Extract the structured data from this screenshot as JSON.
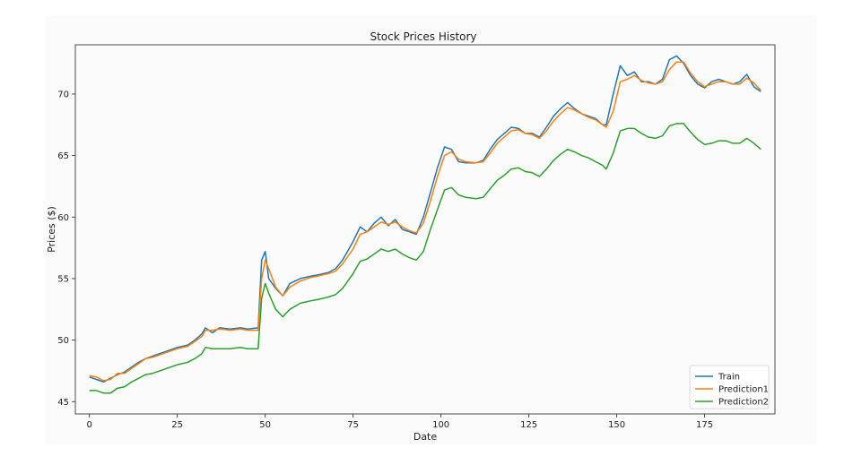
{
  "chart_data": {
    "type": "line",
    "title": "Stock Prices History",
    "xlabel": "Date",
    "ylabel": "Prices ($)",
    "xlim": [
      -4,
      195
    ],
    "ylim": [
      44,
      74
    ],
    "xticks": [
      0,
      25,
      50,
      75,
      100,
      125,
      150,
      175
    ],
    "yticks": [
      45,
      50,
      55,
      60,
      65,
      70
    ],
    "grid": false,
    "legend_position": "bottom-right",
    "series": [
      {
        "name": "Train",
        "color": "#1f77b4",
        "points": [
          [
            0,
            47.0
          ],
          [
            2,
            46.8
          ],
          [
            4,
            46.6
          ],
          [
            6,
            46.9
          ],
          [
            8,
            47.2
          ],
          [
            10,
            47.4
          ],
          [
            12,
            47.8
          ],
          [
            14,
            48.2
          ],
          [
            16,
            48.5
          ],
          [
            18,
            48.7
          ],
          [
            20,
            48.9
          ],
          [
            22,
            49.1
          ],
          [
            25,
            49.4
          ],
          [
            28,
            49.6
          ],
          [
            30,
            50.0
          ],
          [
            32,
            50.5
          ],
          [
            33,
            51.0
          ],
          [
            35,
            50.6
          ],
          [
            37,
            51.0
          ],
          [
            40,
            50.9
          ],
          [
            43,
            51.0
          ],
          [
            45,
            50.9
          ],
          [
            48,
            51.0
          ],
          [
            49,
            56.5
          ],
          [
            50,
            57.2
          ],
          [
            51,
            55.0
          ],
          [
            53,
            54.2
          ],
          [
            55,
            53.6
          ],
          [
            57,
            54.6
          ],
          [
            60,
            55.0
          ],
          [
            63,
            55.2
          ],
          [
            65,
            55.3
          ],
          [
            68,
            55.5
          ],
          [
            70,
            55.8
          ],
          [
            72,
            56.5
          ],
          [
            75,
            58.0
          ],
          [
            77,
            59.2
          ],
          [
            79,
            58.8
          ],
          [
            81,
            59.5
          ],
          [
            83,
            60.0
          ],
          [
            85,
            59.3
          ],
          [
            87,
            59.8
          ],
          [
            89,
            59.0
          ],
          [
            91,
            58.8
          ],
          [
            93,
            58.6
          ],
          [
            95,
            60.0
          ],
          [
            97,
            62.0
          ],
          [
            99,
            64.0
          ],
          [
            101,
            65.7
          ],
          [
            103,
            65.5
          ],
          [
            105,
            64.5
          ],
          [
            107,
            64.4
          ],
          [
            110,
            64.4
          ],
          [
            112,
            64.6
          ],
          [
            114,
            65.5
          ],
          [
            116,
            66.3
          ],
          [
            118,
            66.8
          ],
          [
            120,
            67.3
          ],
          [
            122,
            67.2
          ],
          [
            124,
            66.8
          ],
          [
            126,
            66.8
          ],
          [
            128,
            66.5
          ],
          [
            130,
            67.3
          ],
          [
            132,
            68.2
          ],
          [
            134,
            68.8
          ],
          [
            136,
            69.3
          ],
          [
            138,
            68.8
          ],
          [
            140,
            68.4
          ],
          [
            142,
            68.2
          ],
          [
            144,
            68.0
          ],
          [
            146,
            67.5
          ],
          [
            147,
            67.5
          ],
          [
            149,
            70.0
          ],
          [
            151,
            72.3
          ],
          [
            153,
            71.5
          ],
          [
            155,
            71.8
          ],
          [
            157,
            71.0
          ],
          [
            159,
            71.0
          ],
          [
            161,
            70.8
          ],
          [
            163,
            71.2
          ],
          [
            165,
            72.8
          ],
          [
            167,
            73.1
          ],
          [
            169,
            72.5
          ],
          [
            171,
            71.5
          ],
          [
            173,
            70.8
          ],
          [
            175,
            70.5
          ],
          [
            177,
            71.0
          ],
          [
            179,
            71.2
          ],
          [
            181,
            71.0
          ],
          [
            183,
            70.8
          ],
          [
            185,
            71.0
          ],
          [
            187,
            71.6
          ],
          [
            189,
            70.6
          ],
          [
            191,
            70.2
          ]
        ]
      },
      {
        "name": "Prediction1",
        "color": "#ff7f0e",
        "points": [
          [
            0,
            47.1
          ],
          [
            2,
            47.0
          ],
          [
            4,
            46.7
          ],
          [
            6,
            46.8
          ],
          [
            8,
            47.3
          ],
          [
            10,
            47.3
          ],
          [
            12,
            47.7
          ],
          [
            14,
            48.1
          ],
          [
            16,
            48.5
          ],
          [
            18,
            48.6
          ],
          [
            20,
            48.8
          ],
          [
            22,
            49.0
          ],
          [
            25,
            49.3
          ],
          [
            28,
            49.5
          ],
          [
            30,
            49.9
          ],
          [
            32,
            50.3
          ],
          [
            33,
            50.8
          ],
          [
            35,
            50.8
          ],
          [
            37,
            50.9
          ],
          [
            40,
            50.8
          ],
          [
            43,
            50.9
          ],
          [
            45,
            50.8
          ],
          [
            48,
            50.8
          ],
          [
            49,
            55.0
          ],
          [
            50,
            56.5
          ],
          [
            51,
            55.8
          ],
          [
            53,
            54.3
          ],
          [
            55,
            53.6
          ],
          [
            57,
            54.3
          ],
          [
            60,
            54.8
          ],
          [
            63,
            55.1
          ],
          [
            65,
            55.2
          ],
          [
            68,
            55.4
          ],
          [
            70,
            55.6
          ],
          [
            72,
            56.2
          ],
          [
            75,
            57.4
          ],
          [
            77,
            58.6
          ],
          [
            79,
            58.8
          ],
          [
            81,
            59.2
          ],
          [
            83,
            59.6
          ],
          [
            85,
            59.4
          ],
          [
            87,
            59.6
          ],
          [
            89,
            59.2
          ],
          [
            91,
            58.9
          ],
          [
            93,
            58.7
          ],
          [
            95,
            59.5
          ],
          [
            97,
            61.3
          ],
          [
            99,
            63.3
          ],
          [
            101,
            65.0
          ],
          [
            103,
            65.3
          ],
          [
            105,
            64.7
          ],
          [
            107,
            64.5
          ],
          [
            110,
            64.4
          ],
          [
            112,
            64.5
          ],
          [
            114,
            65.2
          ],
          [
            116,
            66.0
          ],
          [
            118,
            66.5
          ],
          [
            120,
            67.0
          ],
          [
            122,
            67.1
          ],
          [
            124,
            66.8
          ],
          [
            126,
            66.7
          ],
          [
            128,
            66.4
          ],
          [
            130,
            67.0
          ],
          [
            132,
            67.8
          ],
          [
            134,
            68.4
          ],
          [
            136,
            68.9
          ],
          [
            138,
            68.7
          ],
          [
            140,
            68.4
          ],
          [
            142,
            68.1
          ],
          [
            144,
            67.9
          ],
          [
            146,
            67.5
          ],
          [
            147,
            67.3
          ],
          [
            149,
            68.6
          ],
          [
            151,
            71.0
          ],
          [
            153,
            71.2
          ],
          [
            155,
            71.5
          ],
          [
            157,
            71.1
          ],
          [
            159,
            70.9
          ],
          [
            161,
            70.8
          ],
          [
            163,
            71.0
          ],
          [
            165,
            72.0
          ],
          [
            167,
            72.6
          ],
          [
            169,
            72.6
          ],
          [
            171,
            71.7
          ],
          [
            173,
            71.0
          ],
          [
            175,
            70.6
          ],
          [
            177,
            70.8
          ],
          [
            179,
            71.0
          ],
          [
            181,
            71.0
          ],
          [
            183,
            70.8
          ],
          [
            185,
            70.8
          ],
          [
            187,
            71.3
          ],
          [
            189,
            70.9
          ],
          [
            191,
            70.3
          ]
        ]
      },
      {
        "name": "Prediction2",
        "color": "#2ca02c",
        "points": [
          [
            0,
            45.9
          ],
          [
            2,
            45.9
          ],
          [
            4,
            45.7
          ],
          [
            6,
            45.7
          ],
          [
            8,
            46.1
          ],
          [
            10,
            46.2
          ],
          [
            12,
            46.6
          ],
          [
            14,
            46.9
          ],
          [
            16,
            47.2
          ],
          [
            18,
            47.3
          ],
          [
            20,
            47.5
          ],
          [
            22,
            47.7
          ],
          [
            25,
            48.0
          ],
          [
            28,
            48.2
          ],
          [
            30,
            48.5
          ],
          [
            32,
            48.9
          ],
          [
            33,
            49.4
          ],
          [
            35,
            49.3
          ],
          [
            37,
            49.3
          ],
          [
            40,
            49.3
          ],
          [
            43,
            49.4
          ],
          [
            45,
            49.3
          ],
          [
            48,
            49.3
          ],
          [
            49,
            53.4
          ],
          [
            50,
            54.6
          ],
          [
            51,
            53.8
          ],
          [
            53,
            52.5
          ],
          [
            55,
            51.9
          ],
          [
            57,
            52.5
          ],
          [
            60,
            53.0
          ],
          [
            63,
            53.2
          ],
          [
            65,
            53.3
          ],
          [
            68,
            53.5
          ],
          [
            70,
            53.7
          ],
          [
            72,
            54.2
          ],
          [
            75,
            55.4
          ],
          [
            77,
            56.4
          ],
          [
            79,
            56.6
          ],
          [
            81,
            57.0
          ],
          [
            83,
            57.4
          ],
          [
            85,
            57.2
          ],
          [
            87,
            57.4
          ],
          [
            89,
            57.0
          ],
          [
            91,
            56.7
          ],
          [
            93,
            56.5
          ],
          [
            95,
            57.2
          ],
          [
            97,
            59.0
          ],
          [
            99,
            60.6
          ],
          [
            101,
            62.2
          ],
          [
            103,
            62.4
          ],
          [
            105,
            61.8
          ],
          [
            107,
            61.6
          ],
          [
            110,
            61.5
          ],
          [
            112,
            61.6
          ],
          [
            114,
            62.3
          ],
          [
            116,
            63.0
          ],
          [
            118,
            63.4
          ],
          [
            120,
            63.9
          ],
          [
            122,
            64.0
          ],
          [
            124,
            63.7
          ],
          [
            126,
            63.6
          ],
          [
            128,
            63.3
          ],
          [
            130,
            63.9
          ],
          [
            132,
            64.6
          ],
          [
            134,
            65.1
          ],
          [
            136,
            65.5
          ],
          [
            138,
            65.3
          ],
          [
            140,
            65.0
          ],
          [
            142,
            64.8
          ],
          [
            144,
            64.5
          ],
          [
            146,
            64.2
          ],
          [
            147,
            63.9
          ],
          [
            149,
            65.2
          ],
          [
            151,
            67.0
          ],
          [
            153,
            67.2
          ],
          [
            155,
            67.2
          ],
          [
            157,
            66.8
          ],
          [
            159,
            66.5
          ],
          [
            161,
            66.4
          ],
          [
            163,
            66.6
          ],
          [
            165,
            67.4
          ],
          [
            167,
            67.6
          ],
          [
            169,
            67.6
          ],
          [
            171,
            66.9
          ],
          [
            173,
            66.3
          ],
          [
            175,
            65.9
          ],
          [
            177,
            66.0
          ],
          [
            179,
            66.2
          ],
          [
            181,
            66.2
          ],
          [
            183,
            66.0
          ],
          [
            185,
            66.0
          ],
          [
            187,
            66.4
          ],
          [
            189,
            66.0
          ],
          [
            191,
            65.5
          ]
        ]
      }
    ]
  }
}
